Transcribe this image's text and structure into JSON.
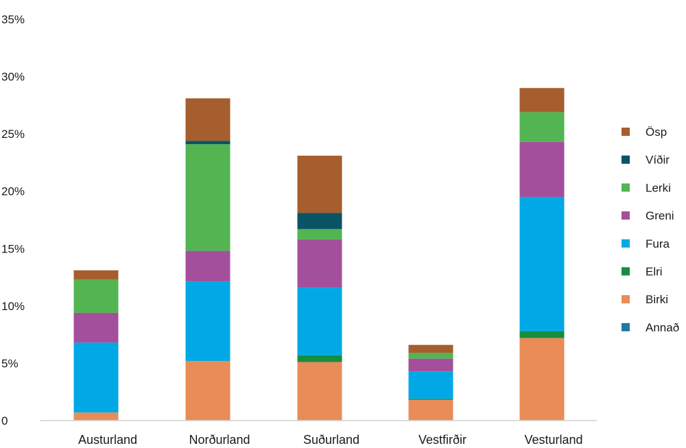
{
  "chart_data": {
    "type": "bar",
    "stacked": true,
    "title": "",
    "xlabel": "",
    "ylabel": "",
    "ylim": [
      0,
      35
    ],
    "y_ticks": [
      0,
      5,
      10,
      15,
      20,
      25,
      30,
      35
    ],
    "y_tick_labels": [
      "0",
      "5%",
      "10%",
      "15%",
      "20%",
      "25%",
      "30%",
      "35%"
    ],
    "grid": false,
    "legend_position": "right",
    "categories": [
      "Austurland",
      "Norðurland",
      "Suðurland",
      "Vestfirðir",
      "Vesturland"
    ],
    "series": [
      {
        "name": "Annað",
        "color": "#1f7aa1",
        "values": [
          0.0,
          0.0,
          0.0,
          0.0,
          0.0
        ]
      },
      {
        "name": "Birki",
        "color": "#e98c57",
        "values": [
          0.7,
          5.2,
          5.1,
          1.8,
          7.2
        ]
      },
      {
        "name": "Elri",
        "color": "#158e41",
        "values": [
          0.0,
          0.0,
          0.6,
          0.1,
          0.6
        ]
      },
      {
        "name": "Fura",
        "color": "#00a9e6",
        "values": [
          6.1,
          6.9,
          5.9,
          2.4,
          11.7
        ]
      },
      {
        "name": "Greni",
        "color": "#a44f9c",
        "values": [
          2.6,
          2.7,
          4.2,
          1.1,
          4.8
        ]
      },
      {
        "name": "Lerki",
        "color": "#52b552",
        "values": [
          2.9,
          9.3,
          0.9,
          0.5,
          2.6
        ]
      },
      {
        "name": "Víðir",
        "color": "#0a5466",
        "values": [
          0.0,
          0.3,
          1.4,
          0.0,
          0.0
        ]
      },
      {
        "name": "Ösp",
        "color": "#a65e2e",
        "values": [
          0.8,
          3.7,
          5.0,
          0.7,
          2.1
        ]
      }
    ],
    "legend_order": [
      "Ösp",
      "Víðir",
      "Lerki",
      "Greni",
      "Fura",
      "Elri",
      "Birki",
      "Annað"
    ]
  }
}
